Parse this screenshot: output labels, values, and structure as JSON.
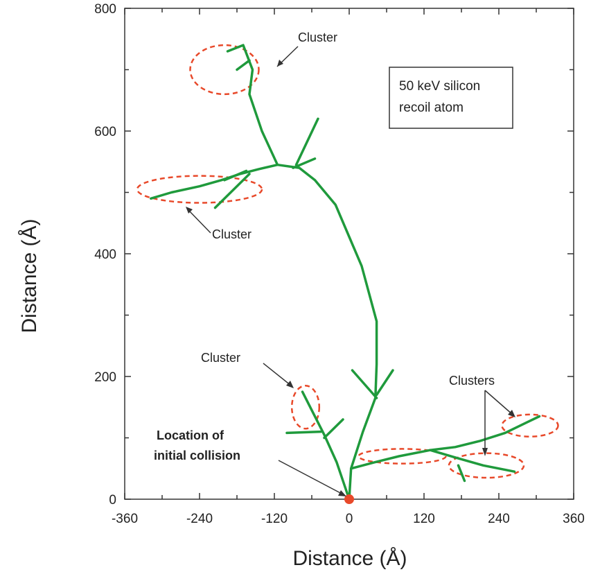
{
  "chart_data": {
    "type": "line",
    "title": "",
    "xlabel": "Distance (Å)",
    "ylabel": "Distance (Å)",
    "xlim": [
      -360,
      360
    ],
    "ylim": [
      0,
      800
    ],
    "x_ticks": [
      "-360",
      "-240",
      "-120",
      "0",
      "120",
      "240",
      "360"
    ],
    "y_ticks": [
      "0",
      "200",
      "400",
      "600",
      "800"
    ],
    "grid": false,
    "legend_box": {
      "line1": "50 keV silicon",
      "line2": "recoil atom",
      "position": "top-right"
    },
    "colors": {
      "track": "#1f9a3c",
      "cluster": "#e8492a",
      "collision": "#e8492a"
    },
    "series": [
      {
        "points": [
          [
            0,
            0
          ],
          [
            3,
            50
          ],
          [
            22,
            110
          ],
          [
            42,
            165
          ],
          [
            44,
            220
          ],
          [
            44,
            290
          ],
          [
            20,
            380
          ],
          [
            -22,
            480
          ],
          [
            -55,
            520
          ],
          [
            -80,
            540
          ],
          [
            -115,
            545
          ],
          [
            -140,
            600
          ],
          [
            -160,
            660
          ],
          [
            -155,
            700
          ],
          [
            -170,
            740
          ],
          [
            -195,
            730
          ]
        ]
      },
      {
        "points": [
          [
            -115,
            545
          ],
          [
            -145,
            538
          ],
          [
            -175,
            530
          ],
          [
            -205,
            520
          ],
          [
            -240,
            510
          ],
          [
            -285,
            500
          ],
          [
            -318,
            490
          ]
        ]
      },
      {
        "points": [
          [
            3,
            50
          ],
          [
            40,
            60
          ],
          [
            80,
            70
          ],
          [
            130,
            80
          ],
          [
            170,
            85
          ],
          [
            210,
            95
          ],
          [
            250,
            108
          ],
          [
            305,
            135
          ]
        ]
      },
      {
        "points": [
          [
            130,
            80
          ],
          [
            170,
            68
          ],
          [
            215,
            55
          ],
          [
            265,
            45
          ]
        ]
      },
      {
        "points": [
          [
            0,
            0
          ],
          [
            -20,
            60
          ],
          [
            -40,
            105
          ],
          [
            -60,
            145
          ],
          [
            -75,
            175
          ]
        ]
      },
      {
        "points": [
          [
            -45,
            110
          ],
          [
            -100,
            108
          ]
        ]
      },
      {
        "points": [
          [
            -40,
            100
          ],
          [
            -10,
            130
          ]
        ]
      },
      {
        "points": [
          [
            44,
            165
          ],
          [
            5,
            210
          ]
        ]
      },
      {
        "points": [
          [
            44,
            170
          ],
          [
            70,
            210
          ]
        ]
      },
      {
        "points": [
          [
            -90,
            540
          ],
          [
            -55,
            555
          ]
        ]
      },
      {
        "points": [
          [
            -85,
            545
          ],
          [
            -50,
            620
          ]
        ]
      },
      {
        "points": [
          [
            -200,
            520
          ],
          [
            -165,
            535
          ]
        ]
      },
      {
        "points": [
          [
            -215,
            475
          ],
          [
            -160,
            530
          ]
        ]
      },
      {
        "points": [
          [
            -180,
            700
          ],
          [
            -160,
            715
          ]
        ]
      },
      {
        "points": [
          [
            175,
            55
          ],
          [
            185,
            30
          ]
        ]
      }
    ],
    "clusters": [
      {
        "cx": -200,
        "cy": 700,
        "rx": 55,
        "ry": 40
      },
      {
        "cx": -240,
        "cy": 505,
        "rx": 100,
        "ry": 22
      },
      {
        "cx": -70,
        "cy": 150,
        "rx": 22,
        "ry": 35
      },
      {
        "cx": 290,
        "cy": 120,
        "rx": 45,
        "ry": 18
      },
      {
        "cx": 220,
        "cy": 55,
        "rx": 60,
        "ry": 20
      },
      {
        "cx": 85,
        "cy": 70,
        "rx": 70,
        "ry": 12
      }
    ],
    "collision_point": [
      0,
      0
    ],
    "annotations": [
      {
        "id": "cluster_top",
        "text": "Cluster"
      },
      {
        "id": "cluster_left",
        "text": "Cluster"
      },
      {
        "id": "cluster_bottom",
        "text": "Cluster"
      },
      {
        "id": "clusters_right",
        "text": "Clusters"
      },
      {
        "id": "initial_line1",
        "text": "Location of"
      },
      {
        "id": "initial_line2",
        "text": "initial collision"
      }
    ]
  }
}
